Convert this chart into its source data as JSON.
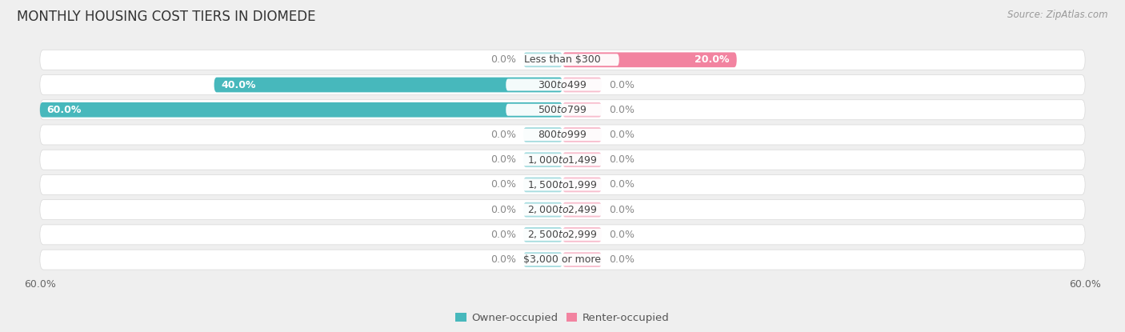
{
  "title": "MONTHLY HOUSING COST TIERS IN DIOMEDE",
  "source": "Source: ZipAtlas.com",
  "categories": [
    "Less than $300",
    "$300 to $499",
    "$500 to $799",
    "$800 to $999",
    "$1,000 to $1,499",
    "$1,500 to $1,999",
    "$2,000 to $2,499",
    "$2,500 to $2,999",
    "$3,000 or more"
  ],
  "owner_values": [
    0.0,
    40.0,
    60.0,
    0.0,
    0.0,
    0.0,
    0.0,
    0.0,
    0.0
  ],
  "renter_values": [
    20.0,
    0.0,
    0.0,
    0.0,
    0.0,
    0.0,
    0.0,
    0.0,
    0.0
  ],
  "owner_color": "#47b8bc",
  "renter_color": "#f283a0",
  "owner_label": "Owner-occupied",
  "renter_label": "Renter-occupied",
  "max_val": 60.0,
  "bg_color": "#efefef",
  "row_bg_color": "#ffffff",
  "row_border_color": "#d8d8d8",
  "stub_color_owner": "#a8dde0",
  "stub_color_renter": "#f8bece",
  "title_fontsize": 12,
  "source_fontsize": 8.5,
  "label_fontsize": 9,
  "category_fontsize": 9,
  "axis_label_fontsize": 9,
  "value_label_color_inside": "#ffffff",
  "value_label_color_outside": "#888888"
}
